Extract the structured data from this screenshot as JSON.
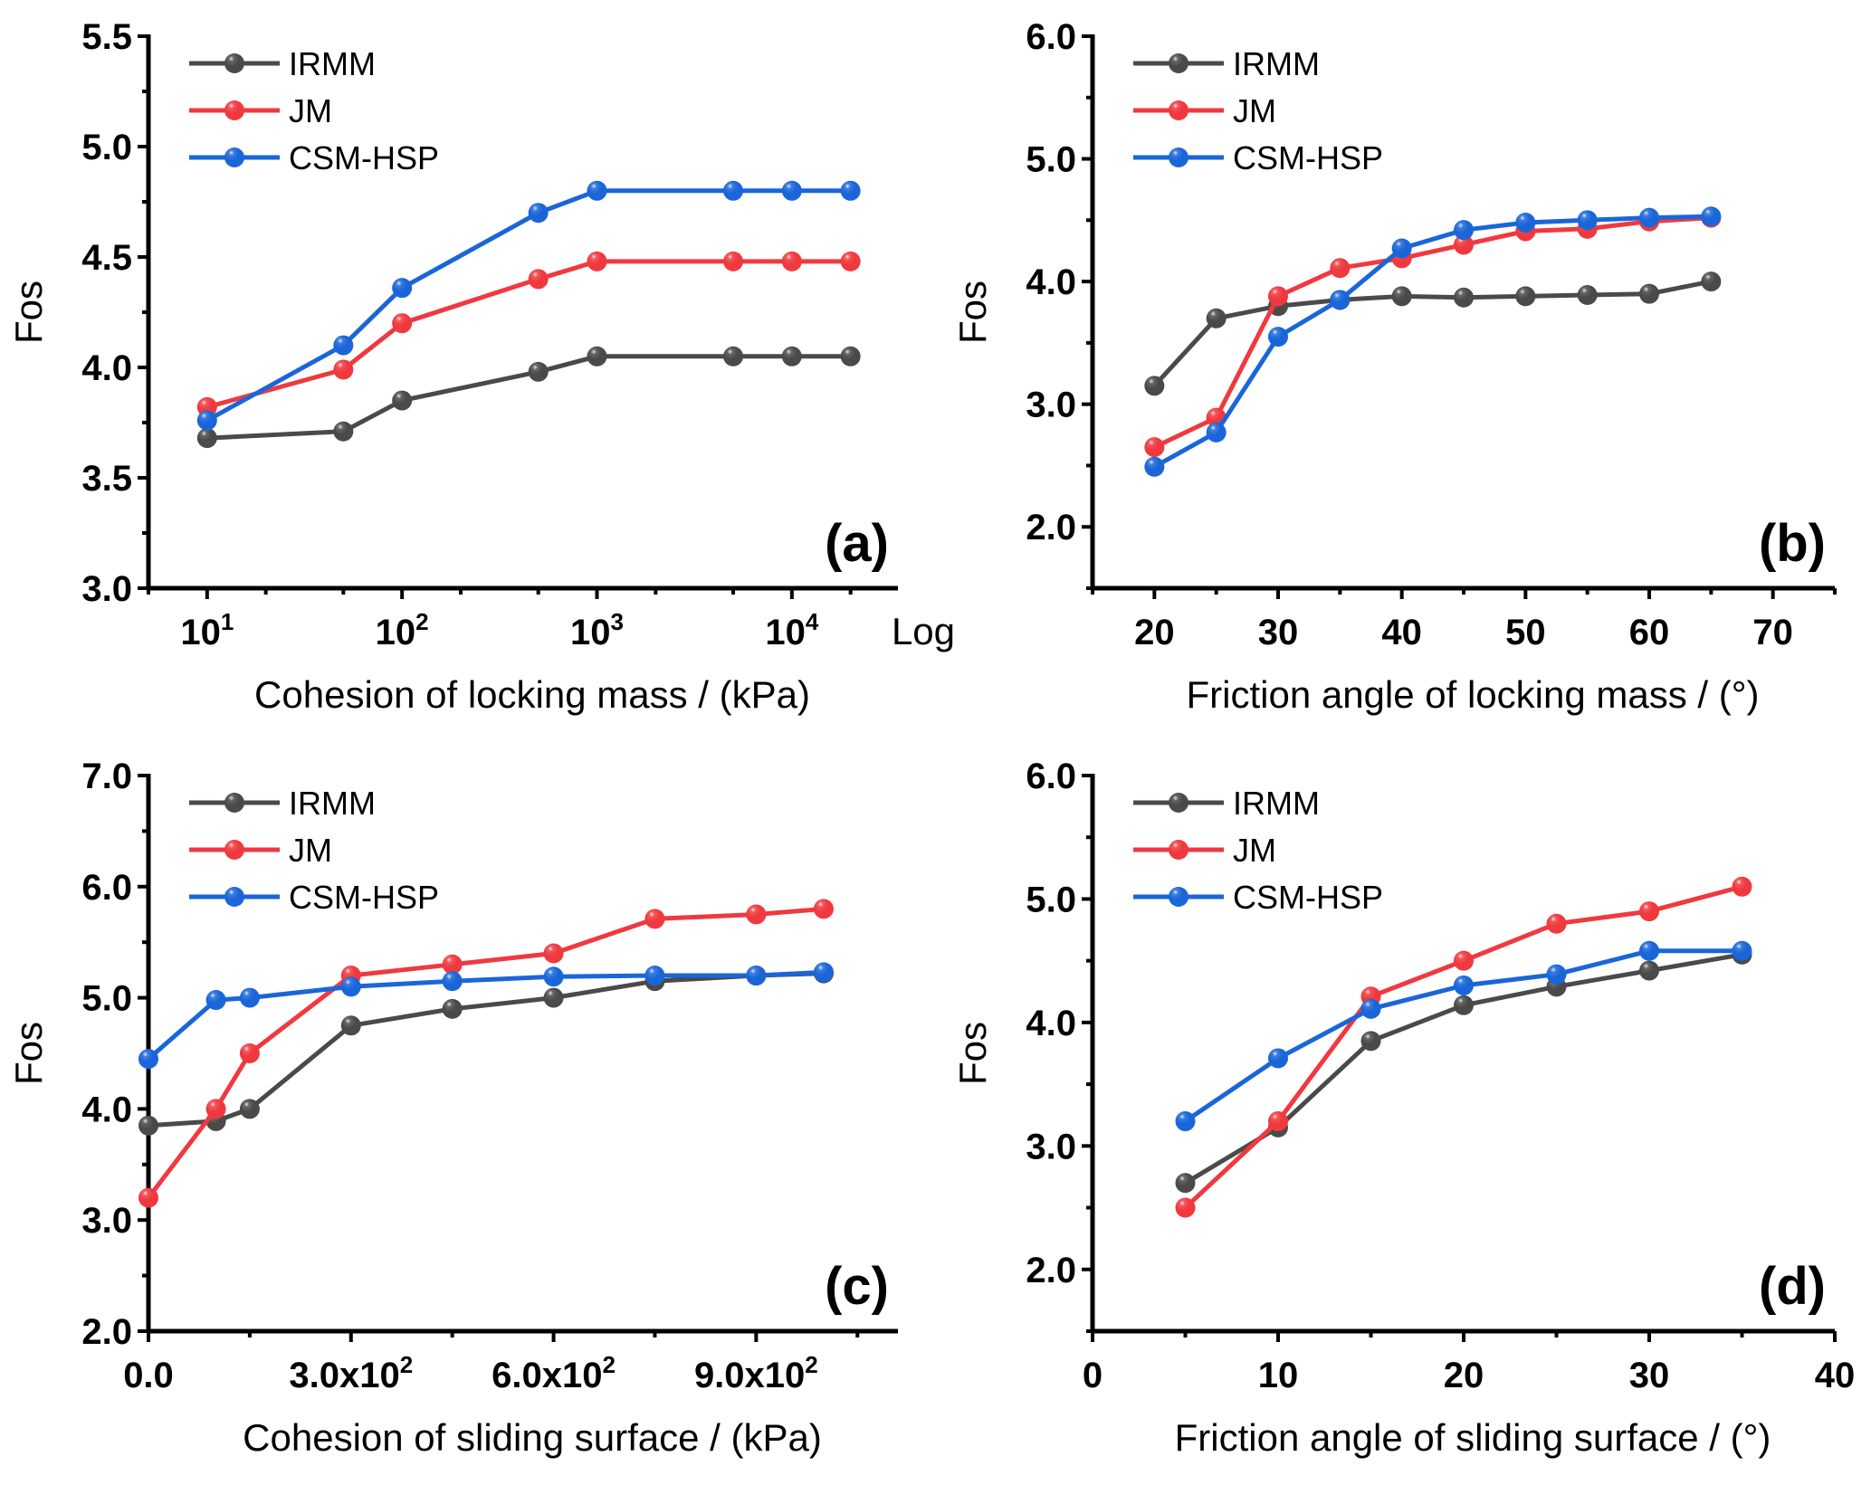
{
  "figure": {
    "colors": {
      "IRMM": "#4a4a4a",
      "JM": "#f0393f",
      "CSM-HSP": "#1a66d9"
    }
  },
  "chart_data": [
    {
      "type": "line",
      "panel_label": "(a)",
      "title": "",
      "xlabel": "Cohesion of locking mass / (kPa)",
      "ylabel": "Fos",
      "xscale": "log",
      "xscale_label": "Log",
      "xlim": [
        5,
        35000
      ],
      "ylim": [
        3.0,
        5.5
      ],
      "xticks": [
        10,
        100,
        1000,
        10000
      ],
      "xtick_labels": [
        {
          "base": "10",
          "exp": "1"
        },
        {
          "base": "10",
          "exp": "2"
        },
        {
          "base": "10",
          "exp": "3"
        },
        {
          "base": "10",
          "exp": "4"
        }
      ],
      "xminor": [
        5,
        20,
        50,
        200,
        500,
        2000,
        5000,
        20000
      ],
      "yticks": [
        3.0,
        3.5,
        4.0,
        4.5,
        5.0,
        5.5
      ],
      "ytick_labels": [
        "3.0",
        "3.5",
        "4.0",
        "4.5",
        "5.0",
        "5.5"
      ],
      "yminor": [
        3.25,
        3.75,
        4.25,
        4.75,
        5.25
      ],
      "legend": {
        "position": "top-left",
        "entries": [
          "IRMM",
          "JM",
          "CSM-HSP"
        ]
      },
      "x": [
        10,
        50,
        100,
        500,
        1000,
        5000,
        10000,
        20000
      ],
      "series": [
        {
          "name": "IRMM",
          "values": [
            3.68,
            3.71,
            3.85,
            3.98,
            4.05,
            4.05,
            4.05,
            4.05
          ]
        },
        {
          "name": "JM",
          "values": [
            3.82,
            3.99,
            4.2,
            4.4,
            4.48,
            4.48,
            4.48,
            4.48
          ]
        },
        {
          "name": "CSM-HSP",
          "values": [
            3.76,
            4.1,
            4.36,
            4.7,
            4.8,
            4.8,
            4.8,
            4.8
          ]
        }
      ]
    },
    {
      "type": "line",
      "panel_label": "(b)",
      "title": "",
      "xlabel": "Friction angle of locking mass / (°)",
      "ylabel": "Fos",
      "xscale": "linear",
      "xlim": [
        15,
        75
      ],
      "ylim": [
        1.5,
        6.0
      ],
      "xticks": [
        20,
        30,
        40,
        50,
        60,
        70
      ],
      "xtick_labels": [
        "20",
        "30",
        "40",
        "50",
        "60",
        "70"
      ],
      "xminor": [
        15,
        25,
        35,
        45,
        55,
        65,
        75
      ],
      "yticks": [
        2.0,
        3.0,
        4.0,
        5.0,
        6.0
      ],
      "ytick_labels": [
        "2.0",
        "3.0",
        "4.0",
        "5.0",
        "6.0"
      ],
      "yminor": [
        1.5,
        2.5,
        3.5,
        4.5,
        5.5
      ],
      "legend": {
        "position": "top-left",
        "entries": [
          "IRMM",
          "JM",
          "CSM-HSP"
        ]
      },
      "x": [
        20,
        25,
        30,
        35,
        40,
        45,
        50,
        55,
        60,
        65
      ],
      "series": [
        {
          "name": "IRMM",
          "values": [
            3.15,
            3.7,
            3.8,
            3.85,
            3.88,
            3.87,
            3.88,
            3.89,
            3.9,
            4.0
          ]
        },
        {
          "name": "JM",
          "values": [
            2.65,
            2.89,
            3.88,
            4.11,
            4.19,
            4.3,
            4.41,
            4.43,
            4.49,
            4.52
          ]
        },
        {
          "name": "CSM-HSP",
          "values": [
            2.49,
            2.77,
            3.55,
            3.85,
            4.27,
            4.42,
            4.48,
            4.5,
            4.52,
            4.53
          ]
        }
      ]
    },
    {
      "type": "line",
      "panel_label": "(c)",
      "title": "",
      "xlabel": "Cohesion of sliding surface / (kPa)",
      "ylabel": "Fos",
      "xscale": "linear",
      "xlim": [
        0,
        1110
      ],
      "ylim": [
        2.0,
        7.0
      ],
      "xticks": [
        0,
        300,
        600,
        900
      ],
      "xtick_labels": [
        {
          "base": "0.0",
          "exp": ""
        },
        {
          "base": "3.0x10",
          "exp": "2"
        },
        {
          "base": "6.0x10",
          "exp": "2"
        },
        {
          "base": "9.0x10",
          "exp": "2"
        }
      ],
      "xminor": [
        150,
        450,
        750,
        1050
      ],
      "yticks": [
        2.0,
        3.0,
        4.0,
        5.0,
        6.0,
        7.0
      ],
      "ytick_labels": [
        "2.0",
        "3.0",
        "4.0",
        "5.0",
        "6.0",
        "7.0"
      ],
      "yminor": [
        2.5,
        3.5,
        4.5,
        5.5,
        6.5
      ],
      "legend": {
        "position": "top-left",
        "entries": [
          "IRMM",
          "JM",
          "CSM-HSP"
        ]
      },
      "x": [
        0,
        100,
        150,
        300,
        450,
        600,
        750,
        900,
        1000
      ],
      "series": [
        {
          "name": "IRMM",
          "values": [
            3.85,
            3.89,
            4.0,
            4.75,
            4.9,
            5.0,
            5.15,
            5.2,
            5.22
          ]
        },
        {
          "name": "JM",
          "values": [
            3.2,
            4.0,
            4.5,
            5.2,
            5.3,
            5.4,
            5.71,
            5.75,
            5.8
          ]
        },
        {
          "name": "CSM-HSP",
          "values": [
            4.45,
            4.98,
            5.0,
            5.1,
            5.15,
            5.19,
            5.2,
            5.2,
            5.23
          ]
        }
      ]
    },
    {
      "type": "line",
      "panel_label": "(d)",
      "title": "",
      "xlabel": "Friction angle of sliding surface / (°)",
      "ylabel": "Fos",
      "xscale": "linear",
      "xlim": [
        0,
        40
      ],
      "ylim": [
        1.5,
        6.0
      ],
      "xticks": [
        0,
        10,
        20,
        30,
        40
      ],
      "xtick_labels": [
        "0",
        "10",
        "20",
        "30",
        "40"
      ],
      "xminor": [
        5,
        15,
        25,
        35
      ],
      "yticks": [
        2.0,
        3.0,
        4.0,
        5.0,
        6.0
      ],
      "ytick_labels": [
        "2.0",
        "3.0",
        "4.0",
        "5.0",
        "6.0"
      ],
      "yminor": [
        1.5,
        2.5,
        3.5,
        4.5,
        5.5
      ],
      "legend": {
        "position": "top-left",
        "entries": [
          "IRMM",
          "JM",
          "CSM-HSP"
        ]
      },
      "x": [
        5,
        10,
        15,
        20,
        25,
        30,
        35
      ],
      "series": [
        {
          "name": "IRMM",
          "values": [
            2.7,
            3.15,
            3.85,
            4.14,
            4.29,
            4.42,
            4.55
          ]
        },
        {
          "name": "JM",
          "values": [
            2.5,
            3.2,
            4.21,
            4.5,
            4.8,
            4.9,
            5.1
          ]
        },
        {
          "name": "CSM-HSP",
          "values": [
            3.2,
            3.71,
            4.11,
            4.3,
            4.39,
            4.58,
            4.58
          ]
        }
      ]
    }
  ]
}
